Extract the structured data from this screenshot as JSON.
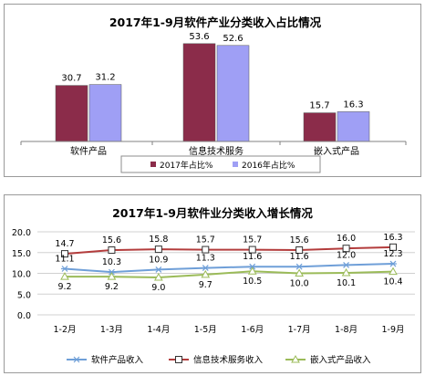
{
  "chart_data": [
    {
      "type": "bar",
      "title": "2017年1-9月软件产业分类收入占比情况",
      "categories": [
        "软件产品",
        "信息技术服务",
        "嵌入式产品"
      ],
      "series": [
        {
          "name": "2017年占比%",
          "values": [
            30.7,
            53.6,
            15.7
          ],
          "color": "#8b2c4a"
        },
        {
          "name": "2016年占比%",
          "values": [
            31.2,
            52.6,
            16.3
          ],
          "color": "#9f9ff5"
        }
      ],
      "ylim": [
        0,
        60
      ],
      "grid": false,
      "legend": "bottom-right"
    },
    {
      "type": "line",
      "title": "2017年1-9月软件业分类收入增长情况",
      "categories": [
        "1-2月",
        "1-3月",
        "1-4月",
        "1-5月",
        "1-6月",
        "1-7月",
        "1-8月",
        "1-9月"
      ],
      "series": [
        {
          "name": "软件产品收入",
          "values": [
            11.1,
            10.3,
            10.9,
            11.3,
            11.6,
            11.6,
            12.0,
            12.3
          ],
          "color": "#6f9fd8",
          "marker": "star"
        },
        {
          "name": "信息技术服务收入",
          "values": [
            14.7,
            15.6,
            15.8,
            15.7,
            15.7,
            15.6,
            16.0,
            16.3
          ],
          "color": "#b33c3c",
          "marker": "square"
        },
        {
          "name": "嵌入式产品收入",
          "values": [
            9.2,
            9.2,
            9.0,
            9.7,
            10.5,
            10.0,
            10.1,
            10.4
          ],
          "color": "#9bbb59",
          "marker": "triangle"
        }
      ],
      "yticks": [
        "0.0",
        "5.0",
        "10.0",
        "15.0",
        "20.0"
      ],
      "ylim": [
        0,
        20
      ],
      "grid": true,
      "legend": "bottom"
    }
  ]
}
